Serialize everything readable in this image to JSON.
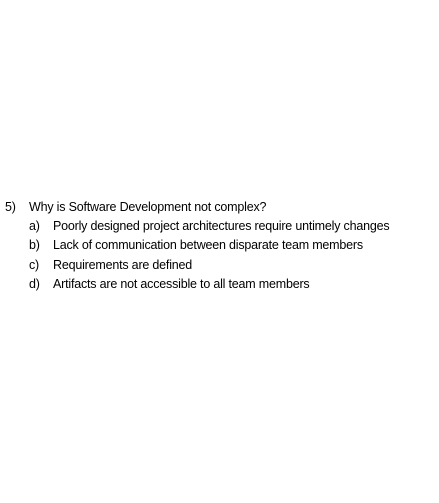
{
  "question": {
    "number": "5)",
    "text": "Why is Software Development not complex?",
    "options": [
      {
        "label": "a)",
        "text": "Poorly designed project architectures require untimely changes"
      },
      {
        "label": "b)",
        "text": "Lack of communication between disparate team members"
      },
      {
        "label": "c)",
        "text": "Requirements are defined"
      },
      {
        "label": "d)",
        "text": "Artifacts are not accessible to all team members"
      }
    ]
  }
}
